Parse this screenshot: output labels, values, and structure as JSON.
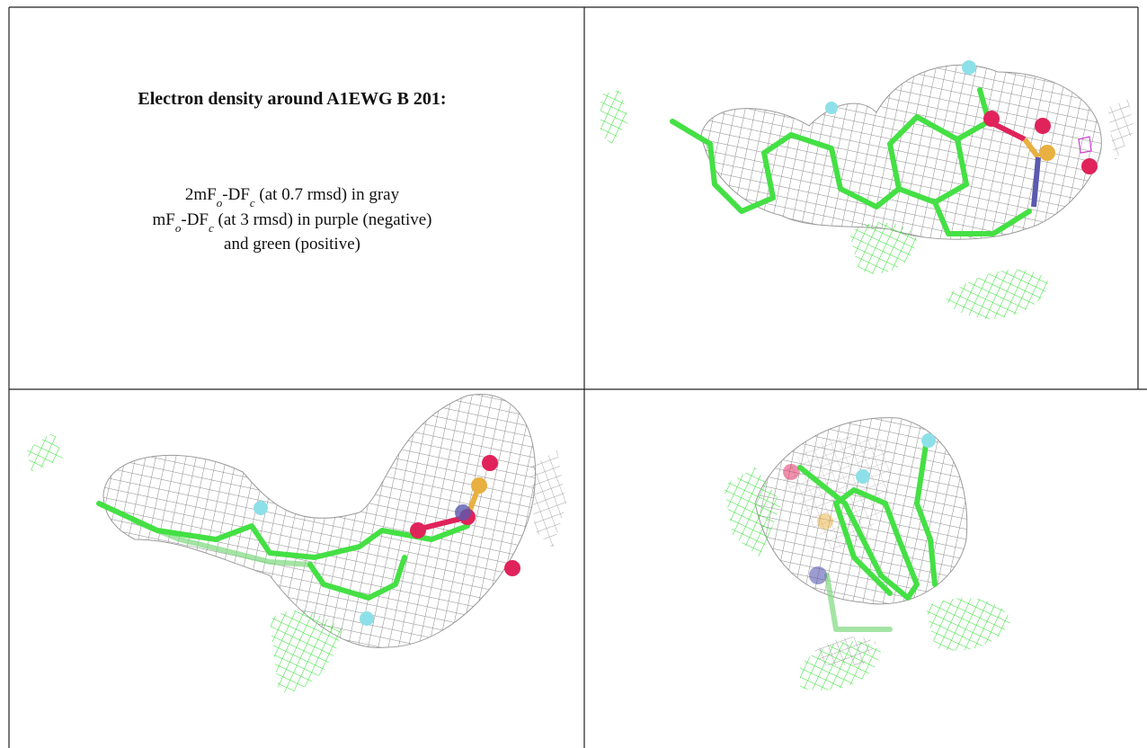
{
  "caption": {
    "title": "Electron density around A1EWG B 201:",
    "lines": [
      [
        "2mF",
        "o",
        "-DF",
        "c",
        " (at 0.7 rmsd) in gray"
      ],
      [
        "mF",
        "o",
        "-DF",
        "c",
        " (at 3 rmsd) in purple (negative)"
      ],
      [
        "and green (positive)"
      ]
    ]
  }
}
